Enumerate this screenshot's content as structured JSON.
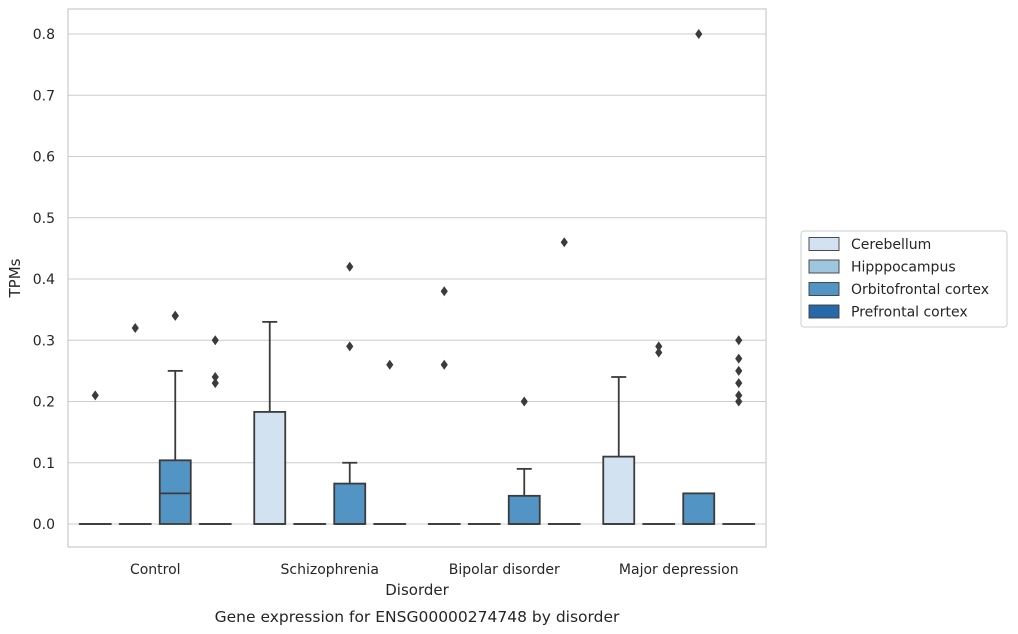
{
  "chart_data": {
    "type": "box",
    "title": "",
    "caption": "Gene expression for ENSG00000274748 by disorder",
    "xlabel": "Disorder",
    "ylabel": "TPMs",
    "ylim": [
      -0.04,
      0.84
    ],
    "yticks": [
      "0.0",
      "0.1",
      "0.2",
      "0.3",
      "0.4",
      "0.5",
      "0.6",
      "0.7",
      "0.8"
    ],
    "grid": "horizontal",
    "legend_position": "right",
    "categories": [
      "Control",
      "Schizophrenia",
      "Bipolar disorder",
      "Major depression"
    ],
    "hue_order": [
      "Cerebellum",
      "Hipppocampus",
      "Orbitofrontal cortex",
      "Prefrontal cortex"
    ],
    "colors": {
      "Cerebellum": "#d3e2f1",
      "Hipppocampus": "#9ec6df",
      "Orbitofrontal cortex": "#5295c4",
      "Prefrontal cortex": "#2668a8"
    },
    "series": [
      {
        "name": "Cerebellum",
        "boxes": [
          {
            "q1": 0,
            "median": 0,
            "q3": 0,
            "whisker_low": 0,
            "whisker_high": 0,
            "outliers": [
              0.21
            ]
          },
          {
            "q1": 0,
            "median": 0,
            "q3": 0.183,
            "whisker_low": 0,
            "whisker_high": 0.33,
            "outliers": []
          },
          {
            "q1": 0,
            "median": 0,
            "q3": 0,
            "whisker_low": 0,
            "whisker_high": 0,
            "outliers": [
              0.38,
              0.26
            ]
          },
          {
            "q1": 0,
            "median": 0,
            "q3": 0.11,
            "whisker_low": 0,
            "whisker_high": 0.24,
            "outliers": []
          }
        ]
      },
      {
        "name": "Hipppocampus",
        "boxes": [
          {
            "q1": 0,
            "median": 0,
            "q3": 0,
            "whisker_low": 0,
            "whisker_high": 0,
            "outliers": [
              0.32
            ]
          },
          {
            "q1": 0,
            "median": 0,
            "q3": 0,
            "whisker_low": 0,
            "whisker_high": 0,
            "outliers": []
          },
          {
            "q1": 0,
            "median": 0,
            "q3": 0,
            "whisker_low": 0,
            "whisker_high": 0,
            "outliers": []
          },
          {
            "q1": 0,
            "median": 0,
            "q3": 0,
            "whisker_low": 0,
            "whisker_high": 0,
            "outliers": [
              0.29,
              0.28
            ]
          }
        ]
      },
      {
        "name": "Orbitofrontal cortex",
        "boxes": [
          {
            "q1": 0,
            "median": 0.05,
            "q3": 0.104,
            "whisker_low": 0,
            "whisker_high": 0.25,
            "outliers": [
              0.34,
              0.34
            ]
          },
          {
            "q1": 0,
            "median": 0,
            "q3": 0.066,
            "whisker_low": 0,
            "whisker_high": 0.1,
            "outliers": [
              0.42,
              0.29
            ]
          },
          {
            "q1": 0,
            "median": 0,
            "q3": 0.046,
            "whisker_low": 0,
            "whisker_high": 0.09,
            "outliers": [
              0.2
            ]
          },
          {
            "q1": 0,
            "median": 0,
            "q3": 0.05,
            "whisker_low": 0,
            "whisker_high": 0.05,
            "outliers": [
              0.8
            ]
          }
        ]
      },
      {
        "name": "Prefrontal cortex",
        "boxes": [
          {
            "q1": 0,
            "median": 0,
            "q3": 0,
            "whisker_low": 0,
            "whisker_high": 0,
            "outliers": [
              0.3,
              0.24,
              0.23
            ]
          },
          {
            "q1": 0,
            "median": 0,
            "q3": 0,
            "whisker_low": 0,
            "whisker_high": 0,
            "outliers": [
              0.26
            ]
          },
          {
            "q1": 0,
            "median": 0,
            "q3": 0,
            "whisker_low": 0,
            "whisker_high": 0,
            "outliers": [
              0.46
            ]
          },
          {
            "q1": 0,
            "median": 0,
            "q3": 0,
            "whisker_low": 0,
            "whisker_high": 0,
            "outliers": [
              0.3,
              0.27,
              0.25,
              0.23,
              0.21,
              0.2
            ]
          }
        ]
      }
    ]
  }
}
